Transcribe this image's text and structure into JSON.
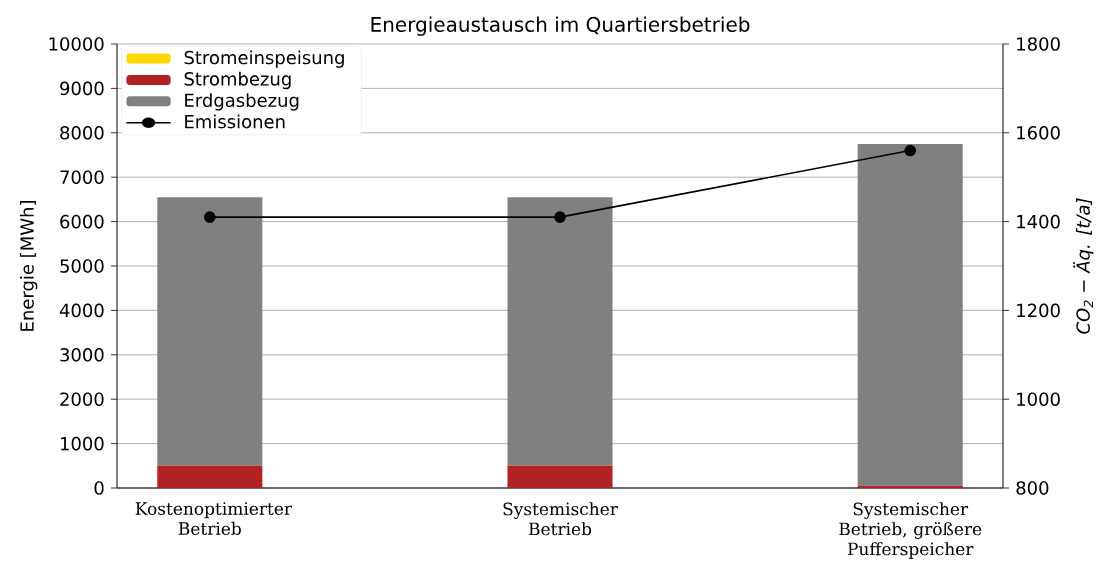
{
  "chart_data": {
    "type": "bar",
    "title": "Energieaustausch im Quartiersbetrieb",
    "categories": [
      "Kostenoptimierter Betrieb",
      "Systemischer Betrieb",
      "Systemischer Betrieb, größere Pufferspeicher"
    ],
    "stacked": true,
    "series": [
      {
        "name": "Stromeinspeisung",
        "color": "#ffd700",
        "values": [
          0,
          0,
          0
        ]
      },
      {
        "name": "Strombezug",
        "color": "#b22222",
        "values": [
          500,
          500,
          50
        ]
      },
      {
        "name": "Erdgasbezug",
        "color": "#808080",
        "values": [
          6050,
          6050,
          7700
        ]
      },
      {
        "name": "Emissionen",
        "type": "line",
        "axis": "y2",
        "color": "#000000",
        "values": [
          1410,
          1410,
          1560
        ]
      }
    ],
    "ylabel": "Energie [MWh]",
    "y2label": "CO$_{2}$ − Äq. [t/a]",
    "ylim": [
      0,
      10000
    ],
    "yticks": [
      0,
      1000,
      2000,
      3000,
      4000,
      5000,
      6000,
      7000,
      8000,
      9000,
      10000
    ],
    "y2lim": [
      800,
      1800
    ],
    "y2ticks": [
      800,
      1000,
      1200,
      1400,
      1600,
      1800
    ],
    "grid": "y",
    "legend": "top left",
    "marker": "circle",
    "line_style": "solid"
  }
}
